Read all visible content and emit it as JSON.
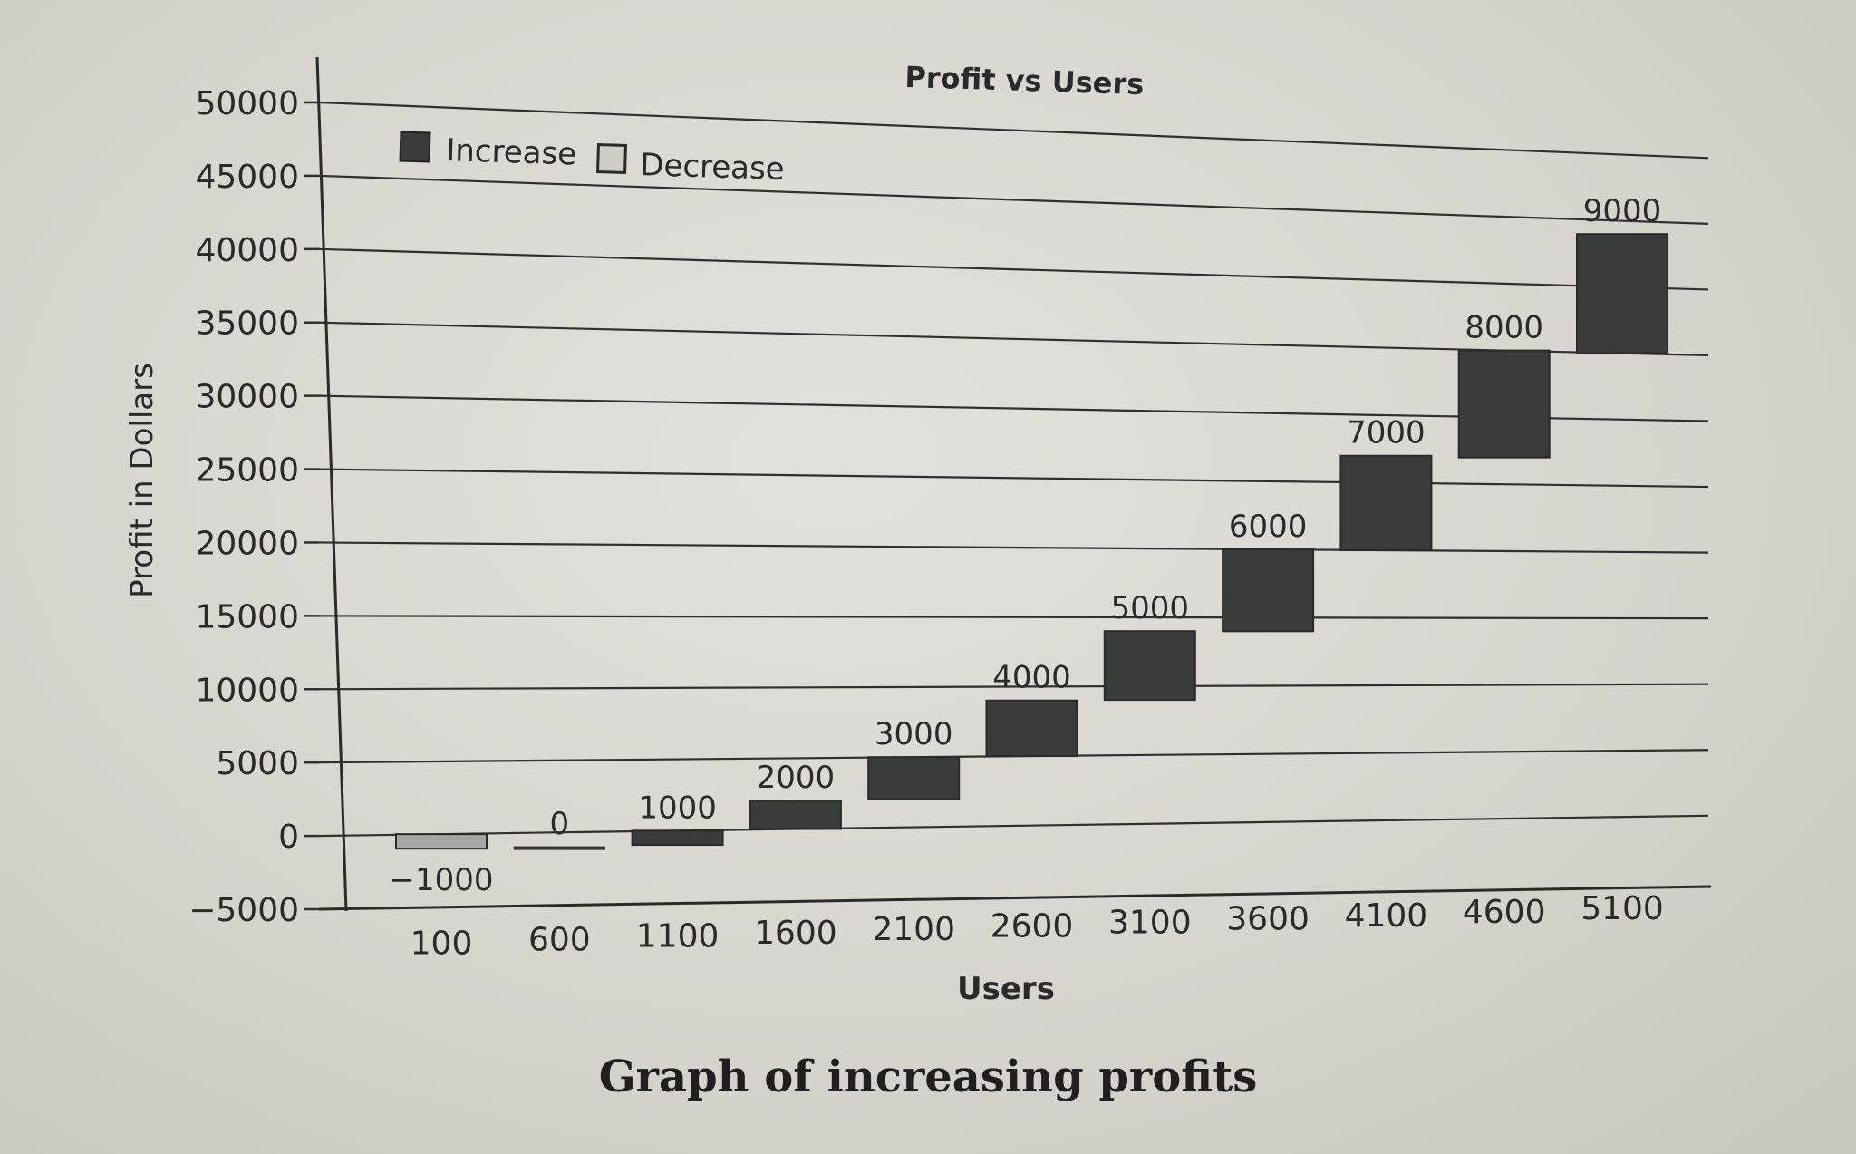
{
  "caption": "Graph of increasing profits",
  "chart_data": {
    "type": "bar",
    "subtype": "waterfall",
    "title": "Profit vs Users",
    "xlabel": "Users",
    "ylabel": "Profit in Dollars",
    "ylim": [
      -5000,
      50000
    ],
    "yticks": [
      50000,
      45000,
      40000,
      35000,
      30000,
      25000,
      20000,
      15000,
      10000,
      5000,
      0,
      -5000
    ],
    "categories": [
      "100",
      "600",
      "1100",
      "1600",
      "2100",
      "2600",
      "3100",
      "3600",
      "4100",
      "4600",
      "5100"
    ],
    "values": [
      -1000,
      0,
      1000,
      2000,
      3000,
      4000,
      5000,
      6000,
      7000,
      8000,
      9000
    ],
    "data_labels": [
      "−1000",
      "0",
      "1000",
      "2000",
      "3000",
      "4000",
      "5000",
      "6000",
      "7000",
      "8000",
      "9000"
    ],
    "legend": [
      {
        "name": "Increase",
        "color": "#3a3b3b"
      },
      {
        "name": "Decrease",
        "color": "#a9a7a3"
      }
    ],
    "legend_position": "top-left",
    "grid": true
  }
}
